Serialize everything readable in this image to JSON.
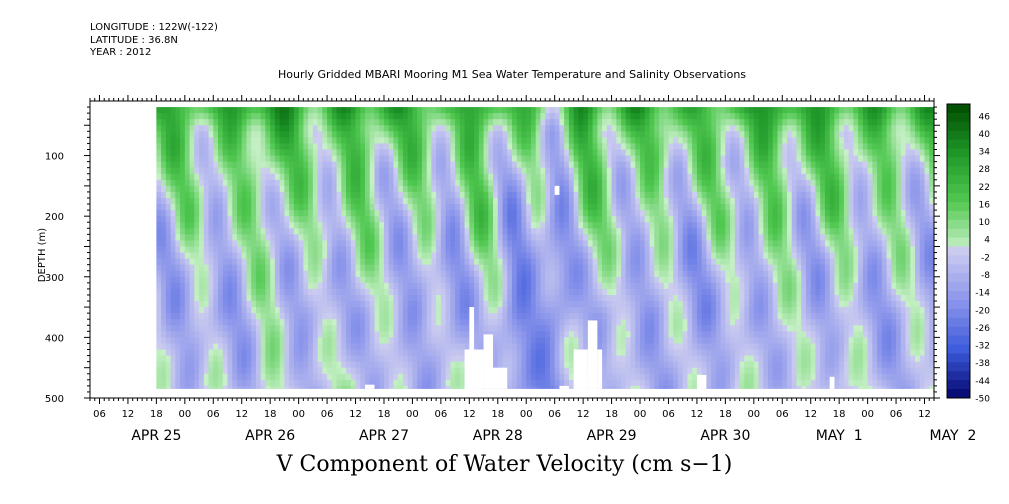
{
  "header": {
    "longitude": "LONGITUDE : 122W(-122)",
    "latitude": "LATITUDE : 36.8N",
    "year": "YEAR : 2012"
  },
  "chart_data": {
    "type": "heatmap",
    "title": "Hourly Gridded MBARI Mooring M1 Sea Water Temperature and Salinity Observations",
    "variable_label": "V Component of Water Velocity (cm s−1)",
    "ylabel": "DEPTH (m)",
    "ylim": [
      500,
      10
    ],
    "y_axis_inverted": true,
    "y_ticks": [
      100,
      200,
      300,
      400,
      500
    ],
    "x_range": [
      "2012-04-24T22:00",
      "2012-05-02T08:00"
    ],
    "data_start": "2012-04-25T12:00",
    "x_hour_ticks": [
      "06",
      "12",
      "18",
      "00",
      "06",
      "12",
      "18",
      "00",
      "06",
      "12",
      "18",
      "00",
      "06",
      "12",
      "18",
      "00",
      "06",
      "12",
      "18",
      "00",
      "06",
      "12",
      "18",
      "00",
      "06",
      "12",
      "18",
      "00",
      "06",
      "12",
      "18",
      "00"
    ],
    "x_day_labels": [
      "APR 25",
      "APR 26",
      "APR 27",
      "APR 28",
      "APR 29",
      "APR 30",
      "MAY  1",
      "MAY  2"
    ],
    "colorbar": {
      "labels": [
        "46",
        "40",
        "34",
        "28",
        "22",
        "16",
        "10",
        "4",
        "-2",
        "-8",
        "-14",
        "-20",
        "-26",
        "-32",
        "-38",
        "-44",
        "-50"
      ],
      "min": -50,
      "max": 50,
      "step": 3
    },
    "depth_profile": [
      {
        "depth": 20,
        "mean_cms": 24,
        "amplitude": 10
      },
      {
        "depth": 60,
        "mean_cms": 13,
        "amplitude": 13
      },
      {
        "depth": 120,
        "mean_cms": 6,
        "amplitude": 14
      },
      {
        "depth": 200,
        "mean_cms": 1,
        "amplitude": 14
      },
      {
        "depth": 280,
        "mean_cms": -5,
        "amplitude": 12
      },
      {
        "depth": 360,
        "mean_cms": -8,
        "amplitude": 10
      },
      {
        "depth": 480,
        "mean_cms": -5,
        "amplitude": 8
      }
    ],
    "temporal_features": [
      {
        "time": "2012-04-26T12:00",
        "offset_cms": 7
      },
      {
        "time": "2012-04-27T06:00",
        "offset_cms": 5
      },
      {
        "time": "2012-04-28T02:00",
        "offset_cms": -5
      },
      {
        "time": "2012-04-28T08:00",
        "offset_cms": 6
      },
      {
        "time": "2012-04-28T16:00",
        "offset_cms": -9
      },
      {
        "time": "2012-04-29T00:00",
        "offset_cms": -13
      },
      {
        "time": "2012-04-29T06:00",
        "offset_cms": 6
      },
      {
        "time": "2012-04-30T04:00",
        "offset_cms": -3
      },
      {
        "time": "2012-04-30T22:00",
        "offset_cms": 5
      },
      {
        "time": "2012-05-01T12:00",
        "offset_cms": 4
      }
    ],
    "missing_regions": [
      {
        "t0": "2012-04-28T06:00",
        "t1": "2012-04-28T07:00",
        "d0": 350,
        "d1": 500
      },
      {
        "t0": "2012-04-28T05:00",
        "t1": "2012-04-28T09:00",
        "d0": 420,
        "d1": 500
      },
      {
        "t0": "2012-04-28T09:00",
        "t1": "2012-04-28T11:00",
        "d0": 395,
        "d1": 500
      },
      {
        "t0": "2012-04-28T11:00",
        "t1": "2012-04-28T14:00",
        "d0": 450,
        "d1": 500
      },
      {
        "t0": "2012-04-29T04:00",
        "t1": "2012-04-29T07:00",
        "d0": 420,
        "d1": 500
      },
      {
        "t0": "2012-04-29T07:00",
        "t1": "2012-04-29T09:00",
        "d0": 372,
        "d1": 500
      },
      {
        "t0": "2012-04-29T09:00",
        "t1": "2012-04-29T10:00",
        "d0": 420,
        "d1": 500
      },
      {
        "t0": "2012-04-29T01:00",
        "t1": "2012-04-29T03:00",
        "d0": 480,
        "d1": 500
      },
      {
        "t0": "2012-04-27T08:00",
        "t1": "2012-04-27T10:00",
        "d0": 478,
        "d1": 500
      },
      {
        "t0": "2012-04-30T06:00",
        "t1": "2012-04-30T08:00",
        "d0": 462,
        "d1": 500
      },
      {
        "t0": "2012-05-01T10:00",
        "t1": "2012-05-01T11:00",
        "d0": 465,
        "d1": 500
      },
      {
        "t0": "2012-04-29T00:00",
        "t1": "2012-04-29T01:00",
        "d0": 150,
        "d1": 165
      }
    ]
  }
}
